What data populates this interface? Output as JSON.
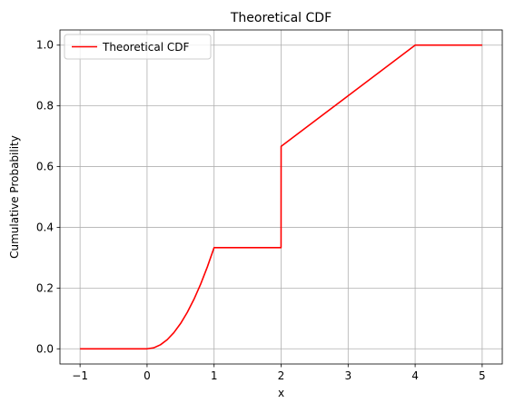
{
  "chart_data": {
    "type": "line",
    "title": "Theoretical CDF",
    "xlabel": "x",
    "ylabel": "Cumulative Probability",
    "xlim": [
      -1.3,
      5.3
    ],
    "ylim": [
      -0.05,
      1.05
    ],
    "xticks": [
      -1,
      0,
      1,
      2,
      3,
      4,
      5
    ],
    "xtick_labels": [
      "−1",
      "0",
      "1",
      "2",
      "3",
      "4",
      "5"
    ],
    "yticks": [
      0.0,
      0.2,
      0.4,
      0.6,
      0.8,
      1.0
    ],
    "ytick_labels": [
      "0.0",
      "0.2",
      "0.4",
      "0.6",
      "0.8",
      "1.0"
    ],
    "grid": true,
    "legend_position": "top-left",
    "series": [
      {
        "name": "Theoretical CDF",
        "color": "#ff0000",
        "x": [
          -1,
          0,
          0.1,
          0.2,
          0.3,
          0.4,
          0.5,
          0.6,
          0.7,
          0.8,
          0.9,
          1,
          1.999,
          2,
          3,
          4,
          5
        ],
        "y": [
          0,
          0,
          0.0033,
          0.0133,
          0.03,
          0.0533,
          0.0833,
          0.12,
          0.1633,
          0.2133,
          0.27,
          0.3333,
          0.3333,
          0.6667,
          0.8333,
          1,
          1
        ]
      }
    ]
  }
}
